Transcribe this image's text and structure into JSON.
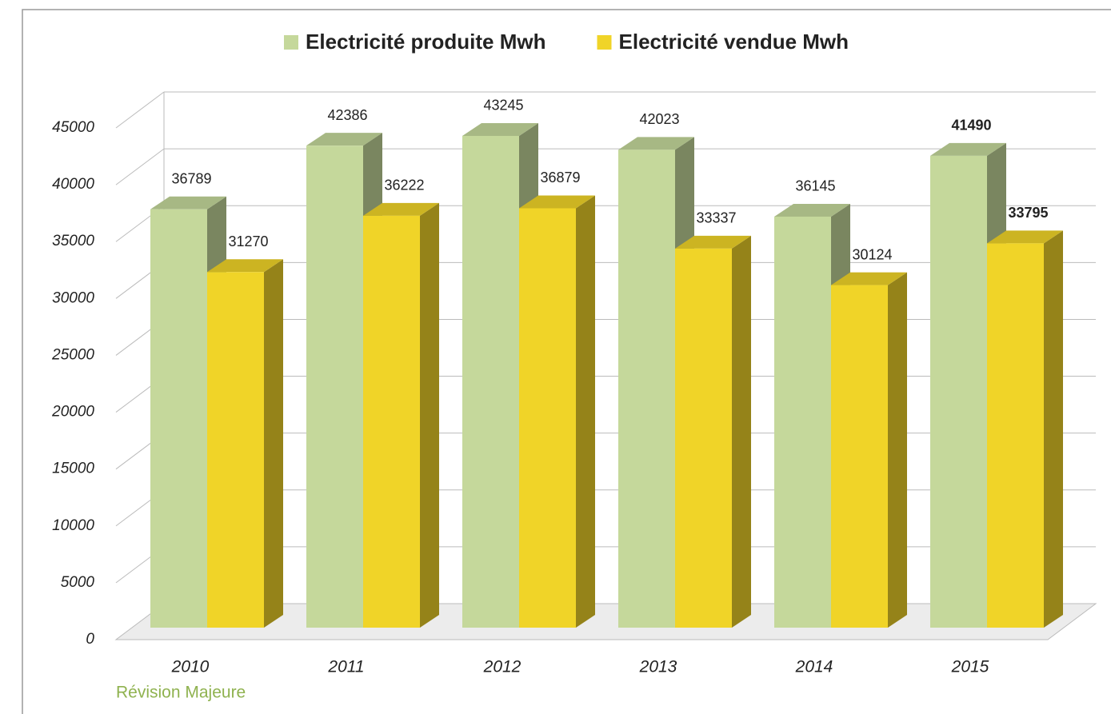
{
  "chart_data": {
    "type": "bar3d",
    "categories": [
      "2010",
      "2011",
      "2012",
      "2013",
      "2014",
      "2015"
    ],
    "series": [
      {
        "name": "Electricité produite Mwh",
        "color": "#c5d89b",
        "values": [
          36789,
          42386,
          43245,
          42023,
          36145,
          41490
        ]
      },
      {
        "name": "Electricité vendue Mwh",
        "color": "#f0d428",
        "values": [
          31270,
          36222,
          36879,
          33337,
          30124,
          33795
        ]
      }
    ],
    "ylim": [
      0,
      45000
    ],
    "yticks": [
      0,
      5000,
      10000,
      15000,
      20000,
      25000,
      30000,
      35000,
      40000,
      45000
    ],
    "grid": true,
    "legend": "top",
    "annotation": "Révision Majeure"
  }
}
